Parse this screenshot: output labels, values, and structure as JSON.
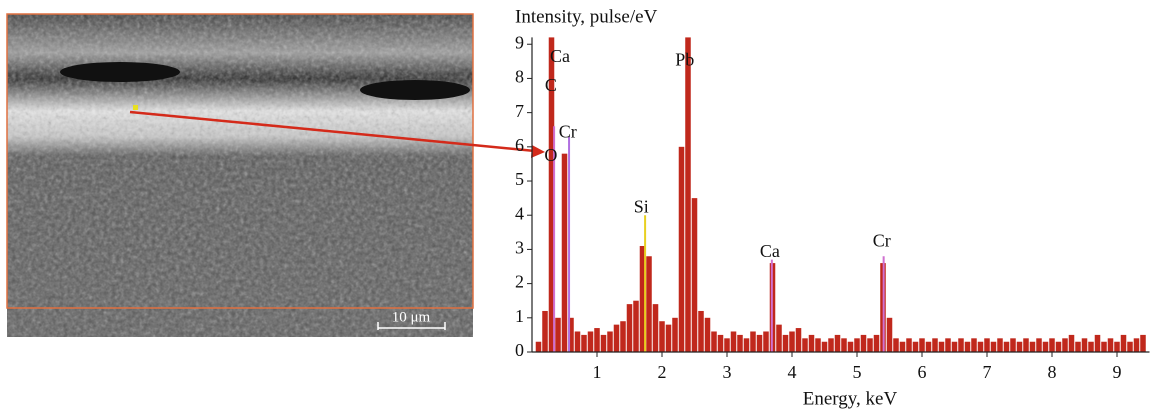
{
  "chart_data": {
    "type": "bar",
    "title": "Intensity, pulse/eV",
    "x_label": "Energy, keV",
    "scale_bar": "10 μm",
    "color": "#c0281c",
    "xlim": [
      0,
      9.5
    ],
    "xticks": [
      1,
      2,
      3,
      4,
      5,
      6,
      7,
      8,
      9
    ],
    "ylim": [
      0,
      9.2
    ],
    "yticks": [
      0,
      1,
      2,
      3,
      4,
      5,
      6,
      7,
      8,
      9
    ],
    "x": [
      0.1,
      0.2,
      0.3,
      0.4,
      0.5,
      0.6,
      0.7,
      0.8,
      0.9,
      1.0,
      1.1,
      1.2,
      1.3,
      1.4,
      1.5,
      1.6,
      1.7,
      1.8,
      1.9,
      2.0,
      2.1,
      2.2,
      2.3,
      2.4,
      2.5,
      2.6,
      2.7,
      2.8,
      2.9,
      3.0,
      3.1,
      3.2,
      3.3,
      3.4,
      3.5,
      3.6,
      3.7,
      3.8,
      3.9,
      4.0,
      4.1,
      4.2,
      4.3,
      4.4,
      4.5,
      4.6,
      4.7,
      4.8,
      4.9,
      5.0,
      5.1,
      5.2,
      5.3,
      5.4,
      5.5,
      5.6,
      5.7,
      5.8,
      5.9,
      6.0,
      6.1,
      6.2,
      6.3,
      6.4,
      6.5,
      6.6,
      6.7,
      6.8,
      6.9,
      7.0,
      7.1,
      7.2,
      7.3,
      7.4,
      7.5,
      7.6,
      7.7,
      7.8,
      7.9,
      8.0,
      8.1,
      8.2,
      8.3,
      8.4,
      8.5,
      8.6,
      8.7,
      8.8,
      8.9,
      9.0,
      9.1,
      9.2,
      9.3,
      9.4
    ],
    "values": [
      0.3,
      1.2,
      9.2,
      1.0,
      5.8,
      1.0,
      0.6,
      0.5,
      0.6,
      0.7,
      0.5,
      0.6,
      0.8,
      0.9,
      1.4,
      1.5,
      3.1,
      2.8,
      1.4,
      0.9,
      0.8,
      1.0,
      6.0,
      9.2,
      4.5,
      1.2,
      1.0,
      0.6,
      0.5,
      0.4,
      0.6,
      0.5,
      0.4,
      0.6,
      0.5,
      0.6,
      2.6,
      0.8,
      0.5,
      0.6,
      0.7,
      0.4,
      0.5,
      0.4,
      0.3,
      0.4,
      0.5,
      0.4,
      0.3,
      0.4,
      0.5,
      0.4,
      0.5,
      2.6,
      1.0,
      0.4,
      0.3,
      0.4,
      0.3,
      0.4,
      0.3,
      0.4,
      0.3,
      0.4,
      0.3,
      0.4,
      0.3,
      0.4,
      0.3,
      0.4,
      0.3,
      0.4,
      0.3,
      0.4,
      0.3,
      0.4,
      0.3,
      0.4,
      0.3,
      0.4,
      0.3,
      0.4,
      0.5,
      0.3,
      0.4,
      0.3,
      0.5,
      0.3,
      0.4,
      0.3,
      0.5,
      0.3,
      0.4,
      0.5
    ],
    "element_lines": [
      {
        "x": 0.34,
        "top": 6.6,
        "color": "#d070d0"
      },
      {
        "x": 0.57,
        "top": 6.3,
        "color": "#b070e0"
      },
      {
        "x": 1.74,
        "top": 4.0,
        "color": "#e8d020"
      },
      {
        "x": 3.69,
        "top": 2.7,
        "color": "#d070d0"
      },
      {
        "x": 5.41,
        "top": 2.8,
        "color": "#d070d0"
      }
    ],
    "annotations": [
      {
        "text": "Ca",
        "x": 0.43,
        "y": 8.6
      },
      {
        "text": "C",
        "x": 0.29,
        "y": 7.75
      },
      {
        "text": "Cr",
        "x": 0.55,
        "y": 6.4
      },
      {
        "text": "O",
        "x": 0.29,
        "y": 5.7
      },
      {
        "text": "Si",
        "x": 1.68,
        "y": 4.2
      },
      {
        "text": "Pb",
        "x": 2.35,
        "y": 8.5
      },
      {
        "text": "Ca",
        "x": 3.66,
        "y": 2.9
      },
      {
        "text": "Cr",
        "x": 5.38,
        "y": 3.2
      }
    ]
  }
}
